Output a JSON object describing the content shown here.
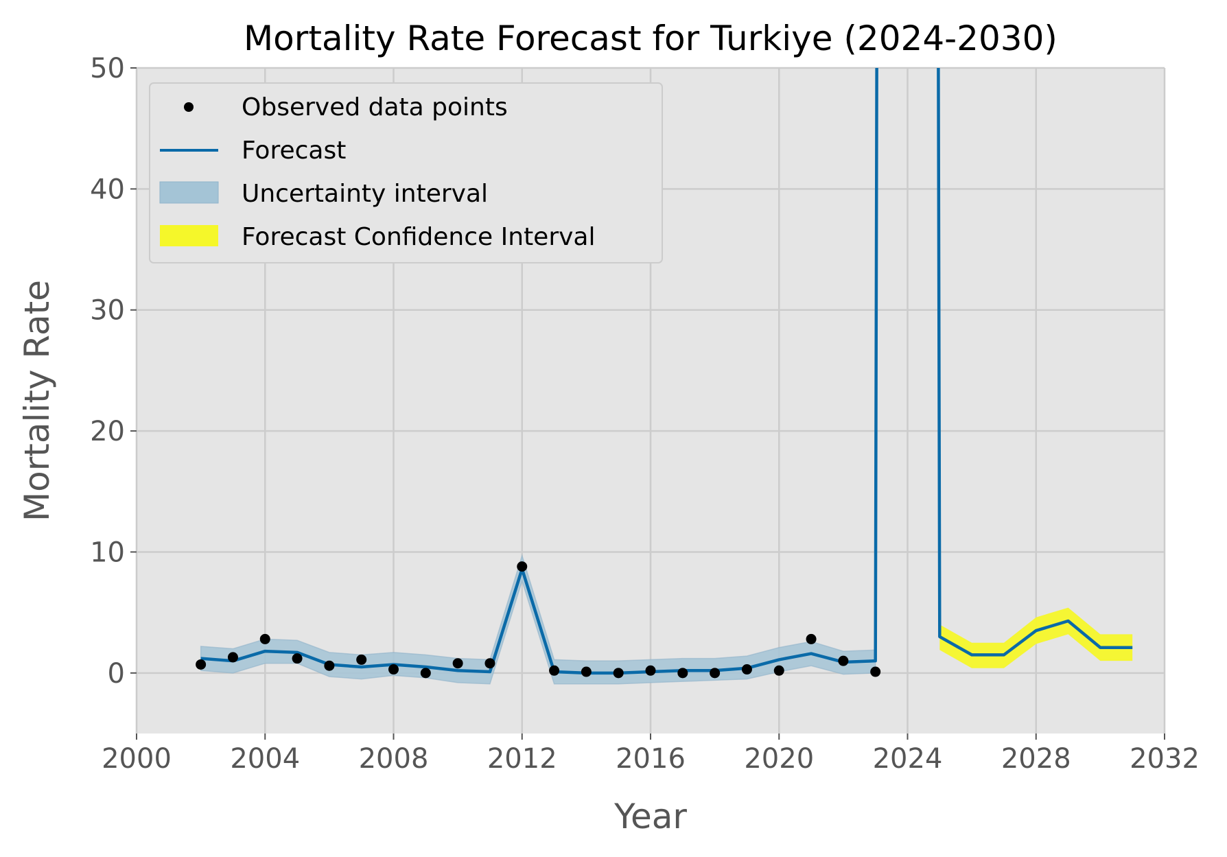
{
  "chart_data": {
    "type": "line",
    "title": "Mortality Rate Forecast for Turkiye (2024-2030)",
    "xlabel": "Year",
    "ylabel": "Mortality Rate",
    "xlim": [
      2000,
      2032
    ],
    "ylim": [
      -5,
      50
    ],
    "xticks": [
      2000,
      2004,
      2008,
      2012,
      2016,
      2020,
      2024,
      2028,
      2032
    ],
    "yticks": [
      0,
      10,
      20,
      30,
      40,
      50
    ],
    "grid": true,
    "legend_position": "top-left",
    "colors": {
      "plot_background": "#e5e5e5",
      "grid": "#cccccc",
      "observed": "#000000",
      "forecast": "#0a6aa8",
      "uncertainty": "#a4c4d6",
      "forecast_ci": "#f5f72a"
    },
    "legend": [
      {
        "label": "Observed data points",
        "kind": "point"
      },
      {
        "label": "Forecast",
        "kind": "line"
      },
      {
        "label": "Uncertainty interval",
        "kind": "band"
      },
      {
        "label": "Forecast Confidence Interval",
        "kind": "ci"
      }
    ],
    "observed": {
      "x": [
        2002,
        2003,
        2004,
        2005,
        2006,
        2007,
        2008,
        2009,
        2010,
        2011,
        2012,
        2013,
        2014,
        2015,
        2016,
        2017,
        2018,
        2019,
        2020,
        2021,
        2022,
        2023
      ],
      "y": [
        0.7,
        1.3,
        2.8,
        1.2,
        0.6,
        1.1,
        0.3,
        0.0,
        0.8,
        0.8,
        8.8,
        0.2,
        0.1,
        0.0,
        0.2,
        0.0,
        0.0,
        0.3,
        0.2,
        2.8,
        1.0,
        0.1
      ]
    },
    "forecast": {
      "x": [
        2002,
        2003,
        2004,
        2005,
        2006,
        2007,
        2008,
        2009,
        2010,
        2011,
        2012,
        2013,
        2014,
        2015,
        2016,
        2017,
        2018,
        2019,
        2020,
        2021,
        2022,
        2023,
        2023.05,
        2024.95,
        2025,
        2026,
        2027,
        2028,
        2029,
        2030,
        2031
      ],
      "y": [
        1.2,
        1.0,
        1.8,
        1.7,
        0.7,
        0.5,
        0.7,
        0.5,
        0.2,
        0.1,
        8.6,
        0.1,
        0.0,
        0.0,
        0.1,
        0.2,
        0.2,
        0.4,
        1.1,
        1.6,
        0.9,
        1.0,
        60,
        60,
        3.0,
        1.5,
        1.5,
        3.5,
        4.3,
        2.1,
        2.1
      ]
    },
    "uncertainty": {
      "x": [
        2002,
        2003,
        2004,
        2005,
        2006,
        2007,
        2008,
        2009,
        2010,
        2011,
        2012,
        2013,
        2014,
        2015,
        2016,
        2017,
        2018,
        2019,
        2020,
        2021,
        2022,
        2023
      ],
      "lower": [
        0.2,
        0.0,
        0.8,
        0.8,
        -0.3,
        -0.5,
        -0.2,
        -0.4,
        -0.8,
        -0.9,
        7.6,
        -0.9,
        -0.9,
        -0.9,
        -0.8,
        -0.7,
        -0.6,
        -0.5,
        0.1,
        0.6,
        -0.1,
        0.0
      ],
      "upper": [
        2.2,
        2.0,
        2.8,
        2.7,
        1.7,
        1.5,
        1.7,
        1.5,
        1.2,
        1.1,
        9.7,
        1.1,
        1.0,
        1.0,
        1.1,
        1.2,
        1.2,
        1.4,
        2.1,
        2.6,
        1.8,
        1.9
      ]
    },
    "forecast_ci": {
      "x": [
        2025,
        2026,
        2027,
        2028,
        2029,
        2030,
        2031
      ],
      "lower": [
        1.9,
        0.4,
        0.4,
        2.4,
        3.2,
        1.0,
        1.0
      ],
      "upper": [
        4.0,
        2.5,
        2.5,
        4.6,
        5.4,
        3.2,
        3.2
      ]
    }
  }
}
